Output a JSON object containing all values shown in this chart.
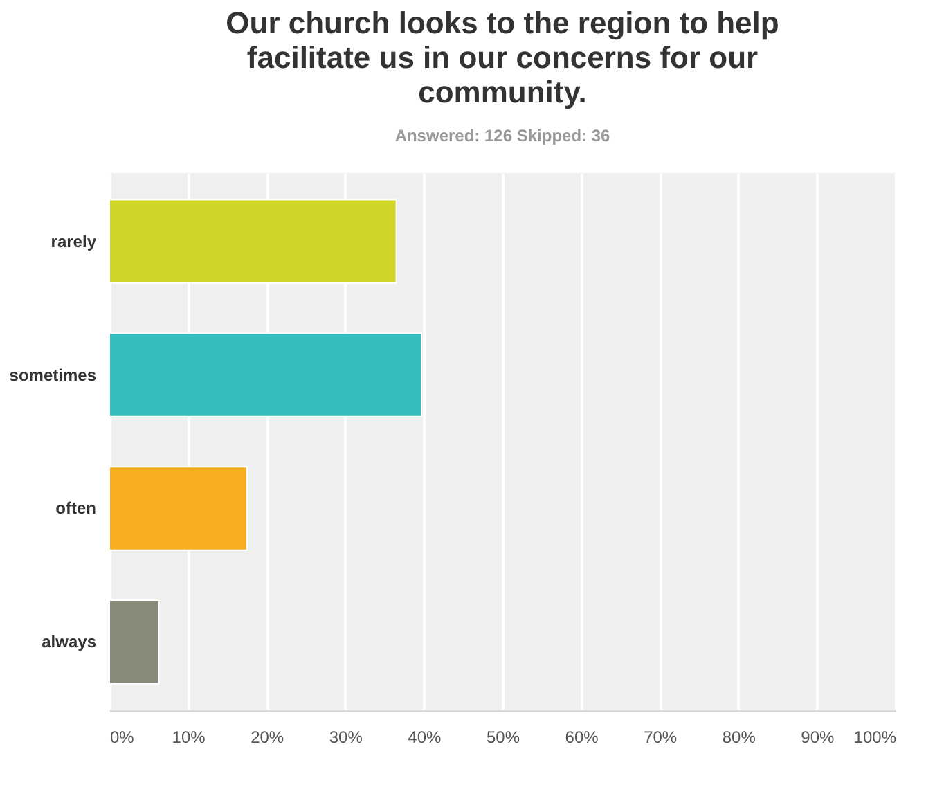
{
  "chart_data": {
    "type": "bar",
    "orientation": "horizontal",
    "title": "Our church looks to the region to help facilitate us in our concerns for our community.",
    "subtitle": "Answered: 126    Skipped: 36",
    "categories": [
      "rarely",
      "sometimes",
      "often",
      "always"
    ],
    "values": [
      36.5,
      39.7,
      17.5,
      6.3
    ],
    "colors": [
      "#d0d629",
      "#33bdbf",
      "#f7ae20",
      "#888a79"
    ],
    "xlim": [
      0,
      100
    ],
    "xticks": [
      {
        "value": 0,
        "label": "0%"
      },
      {
        "value": 10,
        "label": "10%"
      },
      {
        "value": 20,
        "label": "20%"
      },
      {
        "value": 30,
        "label": "30%"
      },
      {
        "value": 40,
        "label": "40%"
      },
      {
        "value": 50,
        "label": "50%"
      },
      {
        "value": 60,
        "label": "60%"
      },
      {
        "value": 70,
        "label": "70%"
      },
      {
        "value": 80,
        "label": "80%"
      },
      {
        "value": 90,
        "label": "90%"
      },
      {
        "value": 100,
        "label": "100%"
      }
    ],
    "grid": "x"
  }
}
